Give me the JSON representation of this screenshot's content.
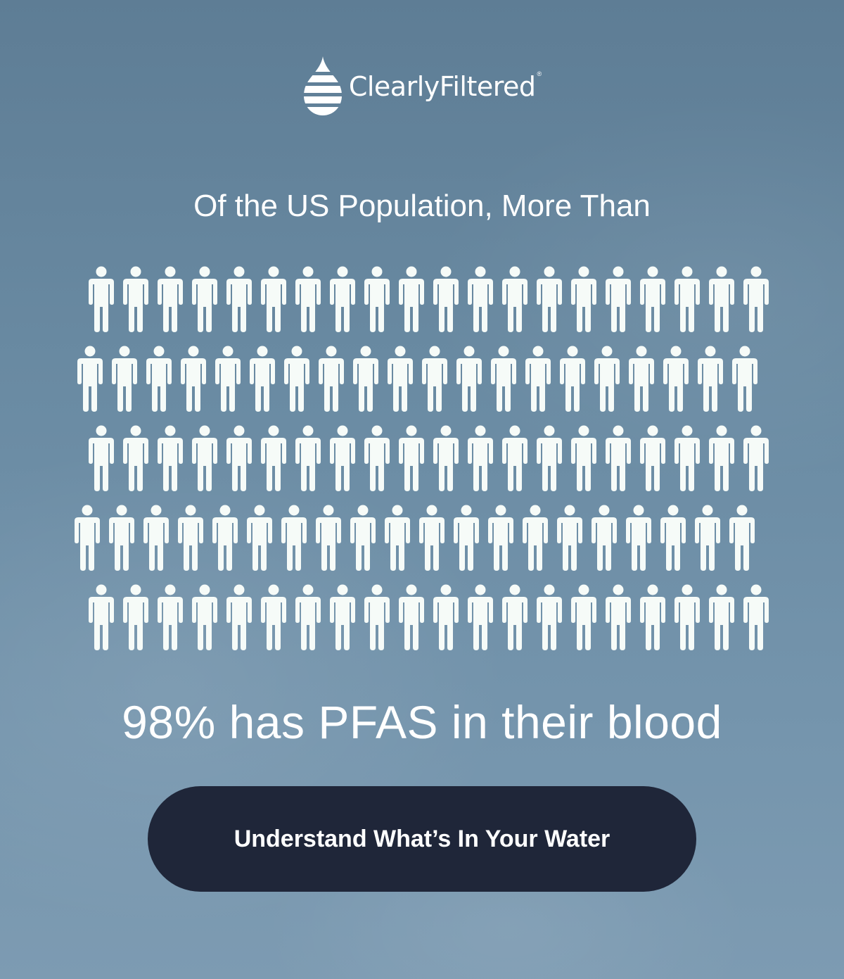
{
  "brand": {
    "name": "ClearlyFiltered",
    "registered_mark": "®",
    "logo_icon": "water-drop-icon"
  },
  "subtitle": "Of the US Population, More Than",
  "people_grid": {
    "icon": "person-icon",
    "rows": 5,
    "per_row": [
      20,
      20,
      20,
      20,
      20
    ],
    "color": "#f6fbf8"
  },
  "headline": "98% has PFAS in their blood",
  "cta": {
    "label": "Understand What’s In Your Water",
    "background": "#1f2639",
    "text_color": "#ffffff"
  }
}
